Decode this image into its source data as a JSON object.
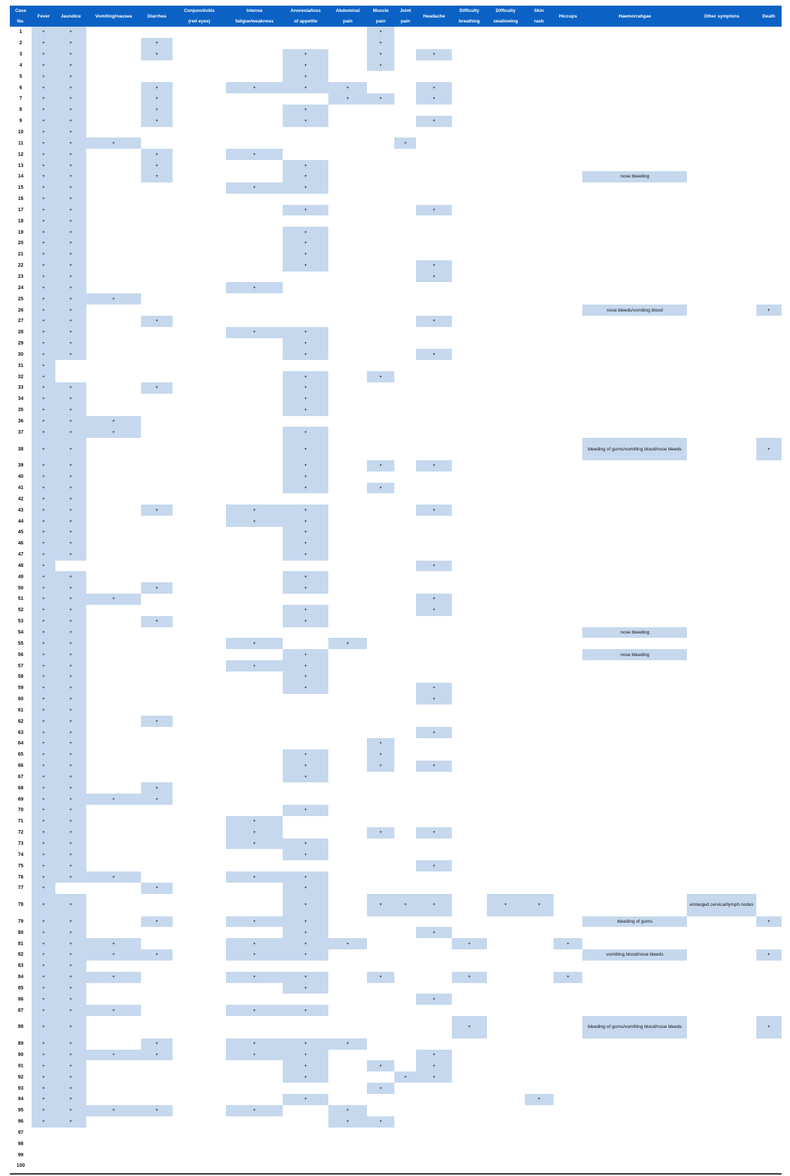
{
  "headers": [
    {
      "l1": "Case",
      "l2": "No."
    },
    {
      "l1": "Fever",
      "l2": ""
    },
    {
      "l1": "Jaundice",
      "l2": ""
    },
    {
      "l1": "Vomiting/nausea",
      "l2": ""
    },
    {
      "l1": "Diarrhea",
      "l2": ""
    },
    {
      "l1": "Conjunctivitis",
      "l2": "(red eyes)"
    },
    {
      "l1": "Intense",
      "l2": "fatigue/weakness"
    },
    {
      "l1": "Anorexia/loss",
      "l2": "of appetite"
    },
    {
      "l1": "Abdominal",
      "l2": "pain"
    },
    {
      "l1": "Muscle",
      "l2": "pain"
    },
    {
      "l1": "Joint",
      "l2": "pain"
    },
    {
      "l1": "Headache",
      "l2": ""
    },
    {
      "l1": "Difficulty",
      "l2": "breathing"
    },
    {
      "l1": "Difficulty",
      "l2": "swallowing"
    },
    {
      "l1": "Skin",
      "l2": "rash"
    },
    {
      "l1": "Hiccups",
      "l2": ""
    },
    {
      "l1": "Haemorrahgae",
      "l2": ""
    },
    {
      "l1": "Other symptons",
      "l2": ""
    },
    {
      "l1": "Death",
      "l2": ""
    }
  ],
  "mark": "+",
  "rows": [
    {
      "n": "1",
      "p": [
        1,
        2,
        9
      ]
    },
    {
      "n": "2",
      "p": [
        1,
        2,
        4,
        9
      ]
    },
    {
      "n": "3",
      "p": [
        1,
        2,
        4,
        7,
        9,
        11
      ]
    },
    {
      "n": "4",
      "p": [
        1,
        2,
        7,
        9
      ]
    },
    {
      "n": "5",
      "p": [
        1,
        2,
        7
      ]
    },
    {
      "n": "6",
      "p": [
        1,
        2,
        4,
        6,
        7,
        8,
        11
      ]
    },
    {
      "n": "7",
      "p": [
        1,
        2,
        4,
        8,
        9,
        11
      ]
    },
    {
      "n": "8",
      "p": [
        1,
        2,
        4,
        7
      ]
    },
    {
      "n": "9",
      "p": [
        1,
        2,
        4,
        7,
        11
      ]
    },
    {
      "n": "10",
      "p": [
        1,
        2
      ]
    },
    {
      "n": "11",
      "p": [
        1,
        2,
        3,
        10
      ]
    },
    {
      "n": "12",
      "p": [
        1,
        2,
        4,
        6
      ]
    },
    {
      "n": "13",
      "p": [
        1,
        2,
        4,
        7
      ]
    },
    {
      "n": "14",
      "p": [
        1,
        2,
        4,
        7
      ],
      "hem": "nose bleeding"
    },
    {
      "n": "15",
      "p": [
        1,
        2,
        6,
        7
      ]
    },
    {
      "n": "16",
      "p": [
        1,
        2
      ]
    },
    {
      "n": "17",
      "p": [
        1,
        2,
        7,
        11
      ]
    },
    {
      "n": "18",
      "p": [
        1,
        2
      ]
    },
    {
      "n": "19",
      "p": [
        1,
        2,
        7
      ]
    },
    {
      "n": "20",
      "p": [
        1,
        2,
        7
      ]
    },
    {
      "n": "21",
      "p": [
        1,
        2,
        7
      ]
    },
    {
      "n": "22",
      "p": [
        1,
        2,
        7,
        11
      ]
    },
    {
      "n": "23",
      "p": [
        1,
        2,
        11
      ]
    },
    {
      "n": "24",
      "p": [
        1,
        2,
        6
      ]
    },
    {
      "n": "25",
      "p": [
        1,
        2,
        3
      ]
    },
    {
      "n": "26",
      "p": [
        1,
        2,
        18
      ],
      "hem": "nose bleeds/vomiting blood"
    },
    {
      "n": "27",
      "p": [
        1,
        2,
        4,
        11
      ]
    },
    {
      "n": "28",
      "p": [
        1,
        2,
        6,
        7
      ]
    },
    {
      "n": "29",
      "p": [
        1,
        2,
        7
      ]
    },
    {
      "n": "30",
      "p": [
        1,
        2,
        7,
        11
      ]
    },
    {
      "n": "31",
      "p": [
        1
      ]
    },
    {
      "n": "32",
      "p": [
        1,
        7,
        9
      ]
    },
    {
      "n": "33",
      "p": [
        1,
        2,
        4,
        7
      ]
    },
    {
      "n": "34",
      "p": [
        1,
        2,
        7
      ]
    },
    {
      "n": "35",
      "p": [
        1,
        2,
        7
      ]
    },
    {
      "n": "36",
      "p": [
        1,
        2,
        3
      ]
    },
    {
      "n": "37",
      "p": [
        1,
        2,
        3,
        7
      ]
    },
    {
      "n": "38",
      "p": [
        1,
        2,
        7,
        18
      ],
      "hem": "bleeding of gums/vomitting blood/nose bleeds",
      "tall": true
    },
    {
      "n": "39",
      "p": [
        1,
        2,
        7,
        9,
        11
      ]
    },
    {
      "n": "40",
      "p": [
        1,
        2,
        7
      ]
    },
    {
      "n": "41",
      "p": [
        1,
        2,
        7,
        9
      ]
    },
    {
      "n": "42",
      "p": [
        1,
        2
      ]
    },
    {
      "n": "43",
      "p": [
        1,
        2,
        4,
        6,
        7,
        11
      ]
    },
    {
      "n": "44",
      "p": [
        1,
        2,
        6,
        7
      ]
    },
    {
      "n": "45",
      "p": [
        1,
        2,
        7
      ]
    },
    {
      "n": "46",
      "p": [
        1,
        2,
        7
      ]
    },
    {
      "n": "47",
      "p": [
        1,
        2,
        7
      ]
    },
    {
      "n": "48",
      "p": [
        1,
        11
      ]
    },
    {
      "n": "49",
      "p": [
        1,
        2,
        7
      ]
    },
    {
      "n": "50",
      "p": [
        1,
        2,
        4,
        7
      ]
    },
    {
      "n": "51",
      "p": [
        1,
        2,
        3,
        11
      ]
    },
    {
      "n": "52",
      "p": [
        1,
        2,
        7,
        11
      ]
    },
    {
      "n": "53",
      "p": [
        1,
        2,
        4,
        7
      ]
    },
    {
      "n": "54",
      "p": [
        1,
        2
      ],
      "hem": "nose bleeding"
    },
    {
      "n": "55",
      "p": [
        1,
        2,
        6,
        8
      ]
    },
    {
      "n": "56",
      "p": [
        1,
        2,
        7
      ],
      "hem": "nose bleeding"
    },
    {
      "n": "57",
      "p": [
        1,
        2,
        6,
        7
      ]
    },
    {
      "n": "58",
      "p": [
        1,
        2,
        7
      ]
    },
    {
      "n": "59",
      "p": [
        1,
        2,
        7,
        11
      ]
    },
    {
      "n": "60",
      "p": [
        1,
        2,
        11
      ]
    },
    {
      "n": "61",
      "p": [
        1,
        2
      ]
    },
    {
      "n": "62",
      "p": [
        1,
        2,
        4
      ]
    },
    {
      "n": "63",
      "p": [
        1,
        2,
        11
      ]
    },
    {
      "n": "64",
      "p": [
        1,
        2,
        9
      ]
    },
    {
      "n": "65",
      "p": [
        1,
        2,
        7,
        9
      ]
    },
    {
      "n": "66",
      "p": [
        1,
        2,
        7,
        9,
        11
      ]
    },
    {
      "n": "67",
      "p": [
        1,
        2,
        7
      ]
    },
    {
      "n": "68",
      "p": [
        1,
        2,
        4
      ]
    },
    {
      "n": "69",
      "p": [
        1,
        2,
        3,
        4
      ]
    },
    {
      "n": "70",
      "p": [
        1,
        2,
        7
      ]
    },
    {
      "n": "71",
      "p": [
        1,
        2,
        6
      ]
    },
    {
      "n": "72",
      "p": [
        1,
        2,
        6,
        9,
        11
      ]
    },
    {
      "n": "73",
      "p": [
        1,
        2,
        6,
        7
      ]
    },
    {
      "n": "74",
      "p": [
        1,
        2,
        7
      ]
    },
    {
      "n": "75",
      "p": [
        1,
        2,
        11
      ]
    },
    {
      "n": "76",
      "p": [
        1,
        2,
        3,
        6,
        7
      ]
    },
    {
      "n": "77",
      "p": [
        1,
        4,
        7
      ]
    },
    {
      "n": "78",
      "p": [
        1,
        2,
        7,
        9,
        10,
        11,
        13,
        14
      ],
      "other": "emlarged cervical/lymph nodes",
      "tall": true
    },
    {
      "n": "79",
      "p": [
        1,
        2,
        4,
        6,
        7,
        18
      ],
      "hem": "bleeding of gums"
    },
    {
      "n": "80",
      "p": [
        1,
        2,
        7,
        11
      ]
    },
    {
      "n": "81",
      "p": [
        1,
        2,
        3,
        6,
        7,
        8,
        12,
        15
      ]
    },
    {
      "n": "82",
      "p": [
        1,
        2,
        3,
        4,
        6,
        7,
        18
      ],
      "hem": "vomitting blood/nose bleeds"
    },
    {
      "n": "83",
      "p": [
        1,
        2
      ]
    },
    {
      "n": "84",
      "p": [
        1,
        2,
        3,
        6,
        7,
        9,
        12,
        15
      ]
    },
    {
      "n": "85",
      "p": [
        1,
        2,
        7
      ]
    },
    {
      "n": "86",
      "p": [
        1,
        2,
        11
      ]
    },
    {
      "n": "87",
      "p": [
        1,
        2,
        3,
        6,
        7
      ]
    },
    {
      "n": "88",
      "p": [
        1,
        2,
        12,
        18
      ],
      "hem": "bleeding of gums/vomitting blood/nose bleeds",
      "tall": true
    },
    {
      "n": "89",
      "p": [
        1,
        2,
        4,
        6,
        7,
        8
      ]
    },
    {
      "n": "90",
      "p": [
        1,
        2,
        3,
        4,
        6,
        7,
        11
      ]
    },
    {
      "n": "91",
      "p": [
        1,
        2,
        7,
        9,
        11
      ]
    },
    {
      "n": "92",
      "p": [
        1,
        2,
        7,
        10,
        11
      ]
    },
    {
      "n": "93",
      "p": [
        1,
        2,
        9
      ]
    },
    {
      "n": "94",
      "p": [
        1,
        2,
        7,
        14
      ]
    },
    {
      "n": "95",
      "p": [
        1,
        2,
        3,
        4,
        6,
        8
      ]
    },
    {
      "n": "96",
      "p": [
        1,
        2,
        8,
        9
      ]
    },
    {
      "n": "97",
      "p": []
    },
    {
      "n": "98",
      "p": []
    },
    {
      "n": "99",
      "p": []
    },
    {
      "n": "100",
      "p": []
    }
  ],
  "colors": {
    "header_bg": "#0b62c4",
    "highlight": "#c5d8ee"
  }
}
